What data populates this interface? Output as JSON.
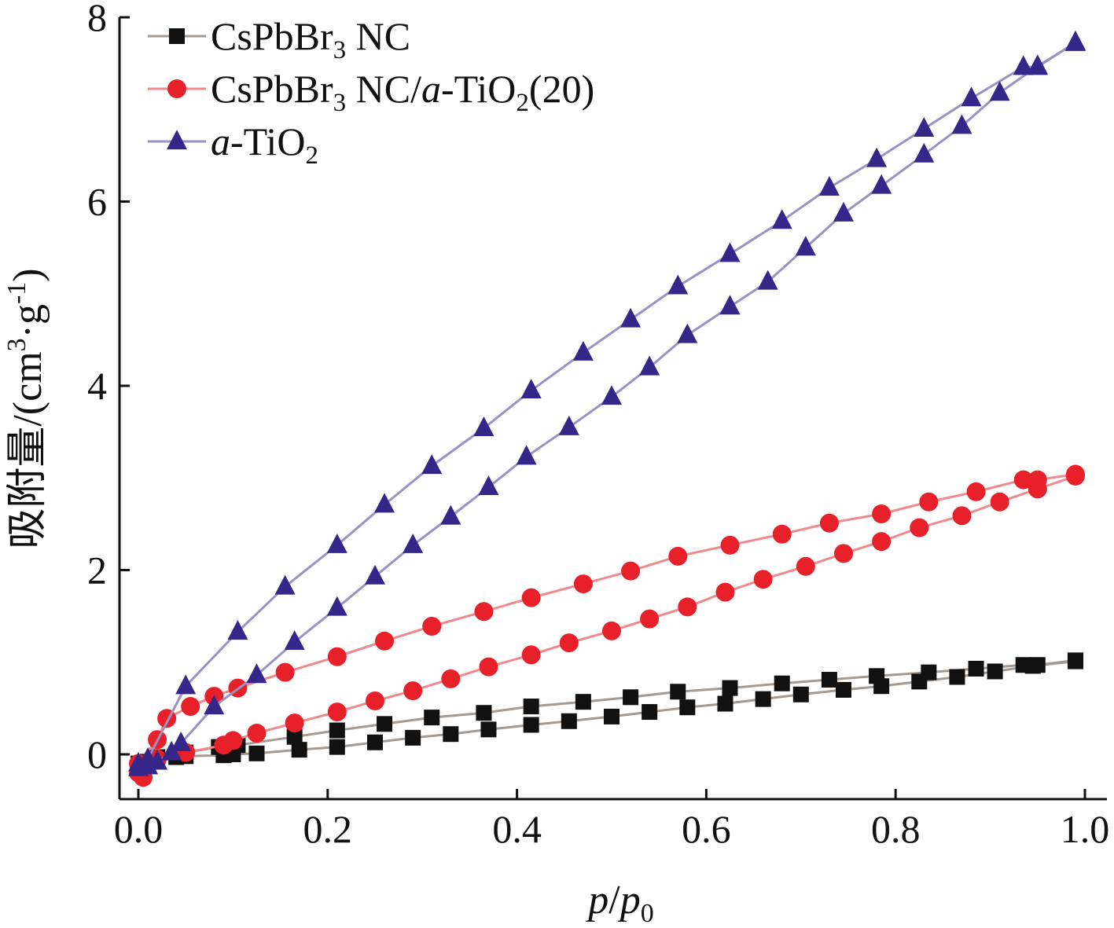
{
  "chart_data": {
    "type": "line",
    "xlabel_parts": [
      {
        "text": "p",
        "style": "italic"
      },
      {
        "text": "/",
        "style": "normal"
      },
      {
        "text": "p",
        "style": "italic"
      },
      {
        "text": "0",
        "style": "sub"
      }
    ],
    "ylabel_parts": [
      {
        "text": "吸附量/(cm",
        "style": "normal"
      },
      {
        "text": "3",
        "style": "sup"
      },
      {
        "text": "·g",
        "style": "normal"
      },
      {
        "text": "-1",
        "style": "sup"
      },
      {
        "text": ")",
        "style": "normal"
      }
    ],
    "xlim": [
      0.0,
      1.0
    ],
    "ylim": [
      -0.45,
      8.0
    ],
    "xticks": [
      0.0,
      0.2,
      0.4,
      0.6,
      0.8,
      1.0
    ],
    "xtick_labels": [
      "0.0",
      "0.2",
      "0.4",
      "0.6",
      "0.8",
      "1.0"
    ],
    "yticks": [
      0,
      2,
      4,
      6,
      8
    ],
    "ytick_labels": [
      "0",
      "2",
      "4",
      "6",
      "8"
    ],
    "grid": false,
    "legend_position": "top-left",
    "series": [
      {
        "key": "cspbbr3",
        "legend_parts": [
          {
            "text": "CsPbBr",
            "style": "normal"
          },
          {
            "text": "3",
            "style": "sub"
          },
          {
            "text": " NC",
            "style": "normal"
          }
        ],
        "marker": "square",
        "color": "#111111",
        "line_color": "#a59a92",
        "branches": [
          {
            "x": [
              0.0,
              0.01,
              0.02,
              0.04,
              0.05,
              0.09,
              0.1,
              0.125,
              0.17,
              0.21,
              0.25,
              0.29,
              0.33,
              0.37,
              0.415,
              0.455,
              0.5,
              0.54,
              0.58,
              0.62,
              0.66,
              0.7,
              0.745,
              0.785,
              0.825,
              0.865,
              0.905,
              0.945,
              0.99
            ],
            "y": [
              -0.1,
              -0.08,
              -0.05,
              -0.03,
              -0.02,
              -0.01,
              0.0,
              0.01,
              0.05,
              0.08,
              0.13,
              0.18,
              0.22,
              0.27,
              0.32,
              0.36,
              0.41,
              0.46,
              0.51,
              0.55,
              0.6,
              0.65,
              0.7,
              0.74,
              0.79,
              0.84,
              0.9,
              0.96,
              1.01
            ]
          },
          {
            "x": [
              0.0,
              0.02,
              0.05,
              0.085,
              0.105,
              0.165,
              0.21,
              0.26,
              0.31,
              0.365,
              0.415,
              0.47,
              0.52,
              0.57,
              0.625,
              0.68,
              0.73,
              0.78,
              0.835,
              0.885,
              0.935,
              0.95,
              0.99
            ],
            "y": [
              -0.1,
              -0.03,
              0.02,
              0.08,
              0.1,
              0.19,
              0.26,
              0.33,
              0.4,
              0.45,
              0.52,
              0.57,
              0.62,
              0.68,
              0.72,
              0.77,
              0.81,
              0.85,
              0.89,
              0.93,
              0.97,
              0.97,
              1.02
            ]
          }
        ]
      },
      {
        "key": "composite",
        "legend_parts": [
          {
            "text": "CsPbBr",
            "style": "normal"
          },
          {
            "text": "3",
            "style": "sub"
          },
          {
            "text": " NC/",
            "style": "normal"
          },
          {
            "text": "a",
            "style": "italic"
          },
          {
            "text": "-TiO",
            "style": "normal"
          },
          {
            "text": "2",
            "style": "sub"
          },
          {
            "text": "(20)",
            "style": "normal"
          }
        ],
        "marker": "circle",
        "color": "#e8202a",
        "line_color": "#f0898d",
        "branches": [
          {
            "x": [
              0.0,
              0.005,
              0.01,
              0.02,
              0.05,
              0.09,
              0.1,
              0.125,
              0.165,
              0.21,
              0.25,
              0.29,
              0.33,
              0.37,
              0.415,
              0.455,
              0.5,
              0.54,
              0.58,
              0.62,
              0.66,
              0.705,
              0.745,
              0.785,
              0.825,
              0.87,
              0.91,
              0.95,
              0.99
            ],
            "y": [
              -0.2,
              -0.25,
              -0.1,
              -0.05,
              0.02,
              0.1,
              0.15,
              0.23,
              0.34,
              0.46,
              0.58,
              0.69,
              0.82,
              0.95,
              1.08,
              1.21,
              1.34,
              1.47,
              1.6,
              1.76,
              1.9,
              2.04,
              2.18,
              2.31,
              2.46,
              2.59,
              2.74,
              2.88,
              3.02
            ]
          },
          {
            "x": [
              0.0,
              0.02,
              0.03,
              0.055,
              0.08,
              0.105,
              0.155,
              0.21,
              0.26,
              0.31,
              0.365,
              0.415,
              0.47,
              0.52,
              0.57,
              0.625,
              0.68,
              0.73,
              0.785,
              0.835,
              0.885,
              0.935,
              0.95,
              0.99
            ],
            "y": [
              -0.1,
              0.16,
              0.39,
              0.52,
              0.63,
              0.72,
              0.89,
              1.06,
              1.23,
              1.39,
              1.55,
              1.7,
              1.85,
              1.99,
              2.15,
              2.27,
              2.39,
              2.51,
              2.61,
              2.74,
              2.85,
              2.98,
              2.98,
              3.04
            ]
          }
        ]
      },
      {
        "key": "atio2",
        "legend_parts": [
          {
            "text": "a",
            "style": "italic"
          },
          {
            "text": "-TiO",
            "style": "normal"
          },
          {
            "text": "2",
            "style": "sub"
          }
        ],
        "marker": "triangle",
        "color": "#35278a",
        "line_color": "#9a92c4",
        "branches": [
          {
            "x": [
              0.0,
              0.01,
              0.02,
              0.035,
              0.045,
              0.08,
              0.125,
              0.165,
              0.21,
              0.25,
              0.29,
              0.33,
              0.37,
              0.41,
              0.455,
              0.5,
              0.54,
              0.58,
              0.625,
              0.665,
              0.705,
              0.745,
              0.785,
              0.83,
              0.87,
              0.91,
              0.95,
              0.99
            ],
            "y": [
              -0.15,
              -0.13,
              -0.08,
              0.02,
              0.12,
              0.52,
              0.86,
              1.22,
              1.59,
              1.93,
              2.27,
              2.58,
              2.9,
              3.23,
              3.55,
              3.88,
              4.2,
              4.55,
              4.86,
              5.13,
              5.5,
              5.87,
              6.17,
              6.51,
              6.82,
              7.18,
              7.47,
              7.72
            ]
          },
          {
            "x": [
              0.0,
              0.01,
              0.05,
              0.105,
              0.155,
              0.21,
              0.26,
              0.31,
              0.365,
              0.415,
              0.47,
              0.52,
              0.57,
              0.625,
              0.68,
              0.73,
              0.78,
              0.83,
              0.88,
              0.935,
              0.95,
              0.99
            ],
            "y": [
              -0.1,
              -0.05,
              0.74,
              1.33,
              1.82,
              2.27,
              2.71,
              3.13,
              3.54,
              3.95,
              4.36,
              4.72,
              5.08,
              5.43,
              5.79,
              6.15,
              6.46,
              6.79,
              7.12,
              7.46,
              7.46,
              7.73
            ]
          }
        ]
      }
    ]
  }
}
